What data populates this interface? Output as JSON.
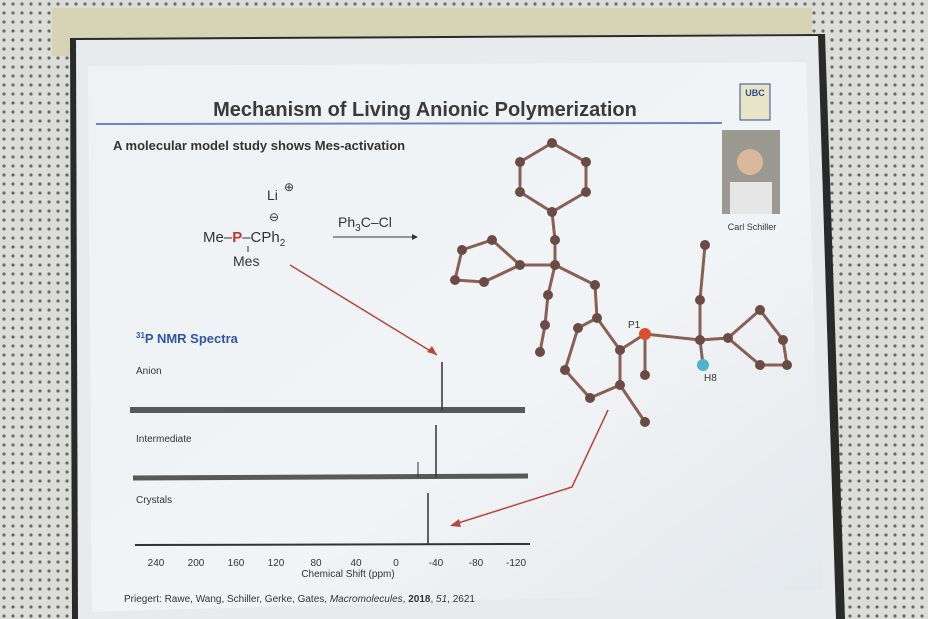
{
  "slide": {
    "title": "Mechanism of Living Anionic Polymerization",
    "subtitle": "A molecular model study shows Mes-activation",
    "logo": "UBC",
    "photo_caption": "Carl Schiller",
    "scheme": {
      "lithium": "Li",
      "plus_charge": "⊕",
      "minus_charge": "⊖",
      "reactant": {
        "prefix": "Me–",
        "atom": "P",
        "suffix": "–CPh",
        "subscript": "2"
      },
      "mesityl": "Mes",
      "reagent": {
        "prefix": "Ph",
        "subscript": "3",
        "suffix": "C–Cl"
      }
    },
    "atom_labels": [
      "P1",
      "H8"
    ],
    "nmr": {
      "heading": {
        "superscript": "31",
        "text": "P NMR Spectra"
      },
      "traces": [
        "Anion",
        "Intermediate",
        "Crystals"
      ],
      "axis_ticks": [
        "240",
        "200",
        "160",
        "120",
        "80",
        "40",
        "0",
        "-40",
        "-80",
        "-120"
      ],
      "axis_label": "Chemical Shift (ppm)"
    },
    "citation": {
      "authors": "Priegert: Rawe, Wang, Schiller, Gerke, Gates, ",
      "journal": "Macromolecules",
      "sep1": ", ",
      "year": "2018",
      "sep2": ", ",
      "volume": "51",
      "pages": ", 2621"
    }
  }
}
